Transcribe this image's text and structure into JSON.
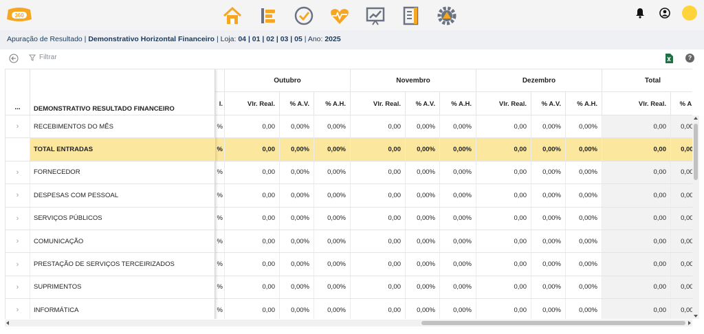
{
  "nav": {
    "items": [
      {
        "name": "home-icon",
        "color": "#f5a623"
      },
      {
        "name": "list-icon",
        "color": "#f5a623"
      },
      {
        "name": "check-icon",
        "color": "#f5a623"
      },
      {
        "name": "heart-monitor-icon",
        "color": "#f5a623"
      },
      {
        "name": "chart-icon",
        "color": "#6b7280"
      },
      {
        "name": "notebook-icon",
        "color": "#6b7280"
      },
      {
        "name": "warning-gear-icon",
        "color": "#6b7280"
      }
    ]
  },
  "header": {
    "logo_text": "360",
    "icons": [
      "bell-icon",
      "user-circle-icon",
      "avatar"
    ]
  },
  "breadcrumb": {
    "prefix": "Apuração de Resultado",
    "sep1": " | ",
    "report": "Demonstrativo Horizontal Financeiro",
    "sep2": " | Loja: ",
    "stores": "04 | 01 | 02 | 03 | 05",
    "sep3": " | Ano: ",
    "year": "2025"
  },
  "toolbar": {
    "filter_label": "Filtrar",
    "help_label": "?"
  },
  "table": {
    "frozen_header_dots": "...",
    "frozen_header_title": "DEMONSTRATIVO RESULTADO FINANCEIRO",
    "cut_header": "I.",
    "groups": [
      "Outubro",
      "Novembro",
      "Dezembro",
      "Total"
    ],
    "col_vlr": "Vlr. Real.",
    "col_av": "% A.V.",
    "col_ah": "% A.H.",
    "rows": [
      {
        "label": "RECEBIMENTOS DO MÊS",
        "expandable": true,
        "total": false
      },
      {
        "label": "TOTAL ENTRADAS",
        "expandable": false,
        "total": true
      },
      {
        "label": "FORNECEDOR",
        "expandable": true,
        "total": false
      },
      {
        "label": "DESPESAS COM PESSOAL",
        "expandable": true,
        "total": false
      },
      {
        "label": "SERVIÇOS PÚBLICOS",
        "expandable": true,
        "total": false
      },
      {
        "label": "COMUNICAÇÃO",
        "expandable": true,
        "total": false
      },
      {
        "label": "PRESTAÇÃO DE SERVIÇOS TERCEIRIZADOS",
        "expandable": true,
        "total": false
      },
      {
        "label": "SUPRIMENTOS",
        "expandable": true,
        "total": false
      },
      {
        "label": "INFORMÁTICA",
        "expandable": true,
        "total": false
      }
    ],
    "cut_value": "%",
    "vlr_value": "0,00",
    "pct_value": "0,00%"
  },
  "colors": {
    "accent": "#f5a623",
    "total_row": "#fce79e",
    "breadcrumb_text": "#1a3a5e"
  }
}
